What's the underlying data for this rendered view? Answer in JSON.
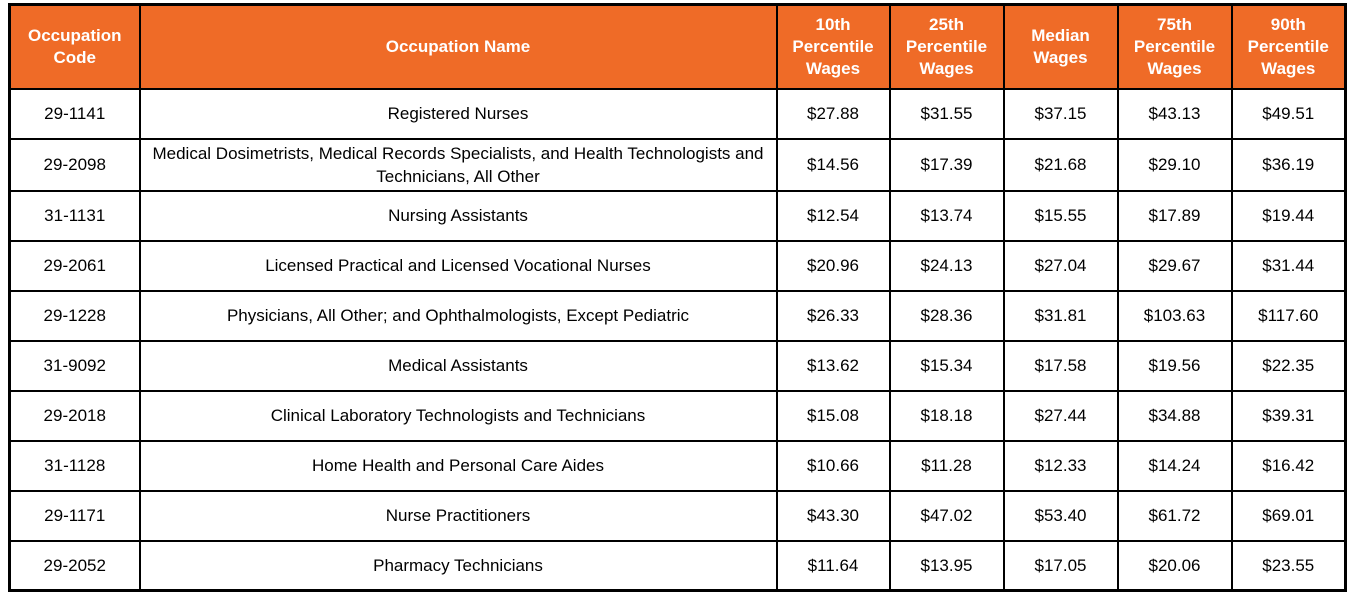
{
  "colors": {
    "header_bg": "#EF6B27",
    "header_text": "#FFFFFF",
    "border": "#000000",
    "row_bg": "#FFFFFF",
    "body_text": "#000000"
  },
  "chart_data": {
    "type": "table",
    "columns": [
      "Occupation Code",
      "Occupation Name",
      "10th Percentile Wages",
      "25th Percentile Wages",
      "Median Wages",
      "75th Percentile Wages",
      "90th Percentile Wages"
    ],
    "rows": [
      [
        "29-1141",
        "Registered Nurses",
        "$27.88",
        "$31.55",
        "$37.15",
        "$43.13",
        "$49.51"
      ],
      [
        "29-2098",
        "Medical Dosimetrists, Medical Records Specialists, and Health Technologists and Technicians, All Other",
        "$14.56",
        "$17.39",
        "$21.68",
        "$29.10",
        "$36.19"
      ],
      [
        "31-1131",
        "Nursing Assistants",
        "$12.54",
        "$13.74",
        "$15.55",
        "$17.89",
        "$19.44"
      ],
      [
        "29-2061",
        "Licensed Practical and Licensed Vocational Nurses",
        "$20.96",
        "$24.13",
        "$27.04",
        "$29.67",
        "$31.44"
      ],
      [
        "29-1228",
        "Physicians, All Other; and Ophthalmologists, Except Pediatric",
        "$26.33",
        "$28.36",
        "$31.81",
        "$103.63",
        "$117.60"
      ],
      [
        "31-9092",
        "Medical Assistants",
        "$13.62",
        "$15.34",
        "$17.58",
        "$19.56",
        "$22.35"
      ],
      [
        "29-2018",
        "Clinical Laboratory Technologists and Technicians",
        "$15.08",
        "$18.18",
        "$27.44",
        "$34.88",
        "$39.31"
      ],
      [
        "31-1128",
        "Home Health and Personal Care Aides",
        "$10.66",
        "$11.28",
        "$12.33",
        "$14.24",
        "$16.42"
      ],
      [
        "29-1171",
        "Nurse Practitioners",
        "$43.30",
        "$47.02",
        "$53.40",
        "$61.72",
        "$69.01"
      ],
      [
        "29-2052",
        "Pharmacy Technicians",
        "$11.64",
        "$13.95",
        "$17.05",
        "$20.06",
        "$23.55"
      ]
    ]
  }
}
